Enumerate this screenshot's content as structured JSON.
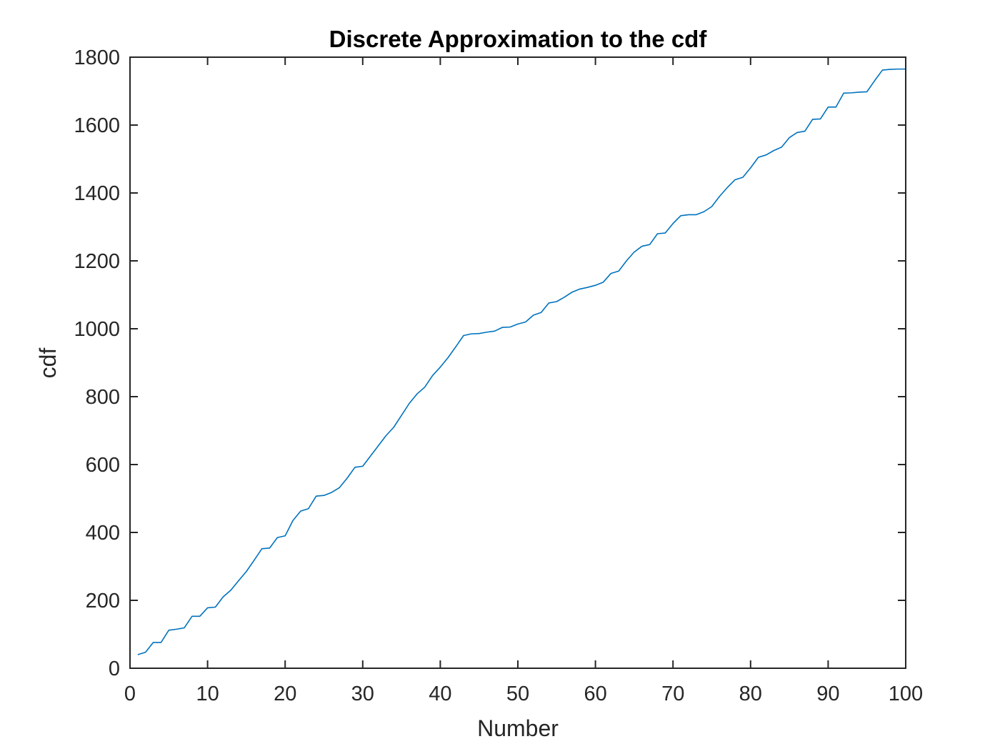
{
  "chart_data": {
    "type": "line",
    "title": "Discrete Approximation to the cdf",
    "xlabel": "Number",
    "ylabel": "cdf",
    "xlim": [
      0,
      100
    ],
    "ylim": [
      0,
      1800
    ],
    "xticks": [
      0,
      10,
      20,
      30,
      40,
      50,
      60,
      70,
      80,
      90,
      100
    ],
    "yticks": [
      0,
      200,
      400,
      600,
      800,
      1000,
      1200,
      1400,
      1600,
      1800
    ],
    "xtick_labels": [
      "0",
      "10",
      "20",
      "30",
      "40",
      "50",
      "60",
      "70",
      "80",
      "90",
      "100"
    ],
    "ytick_labels": [
      "0",
      "200",
      "400",
      "600",
      "800",
      "1000",
      "1200",
      "1400",
      "1600",
      "1800"
    ],
    "grid": false,
    "series": [
      {
        "color": "#0072BD",
        "x": [
          1,
          2,
          3,
          4,
          5,
          6,
          7,
          8,
          9,
          10,
          11,
          12,
          13,
          14,
          15,
          16,
          17,
          18,
          19,
          20,
          21,
          22,
          23,
          24,
          25,
          26,
          27,
          28,
          29,
          30,
          31,
          32,
          33,
          34,
          35,
          36,
          37,
          38,
          39,
          40,
          41,
          42,
          43,
          44,
          45,
          46,
          47,
          48,
          49,
          50,
          51,
          52,
          53,
          54,
          55,
          56,
          57,
          58,
          59,
          60,
          61,
          62,
          63,
          64,
          65,
          66,
          67,
          68,
          69,
          70,
          71,
          72,
          73,
          74,
          75,
          76,
          77,
          78,
          79,
          80,
          81,
          82,
          83,
          84,
          85,
          86,
          87,
          88,
          89,
          90,
          91,
          92,
          93,
          94,
          95,
          96,
          97,
          98,
          99,
          100
        ],
        "y": [
          40,
          47,
          76,
          76,
          112,
          115,
          119,
          153,
          153,
          178,
          180,
          210,
          230,
          258,
          285,
          318,
          352,
          354,
          385,
          390,
          435,
          463,
          470,
          507,
          509,
          518,
          532,
          560,
          592,
          595,
          625,
          655,
          685,
          710,
          745,
          780,
          808,
          828,
          862,
          887,
          915,
          947,
          980,
          985,
          986,
          990,
          993,
          1004,
          1005,
          1014,
          1020,
          1040,
          1048,
          1076,
          1080,
          1093,
          1108,
          1117,
          1122,
          1128,
          1137,
          1163,
          1170,
          1200,
          1226,
          1243,
          1248,
          1280,
          1282,
          1310,
          1333,
          1336,
          1336,
          1345,
          1360,
          1390,
          1416,
          1439,
          1446,
          1474,
          1505,
          1512,
          1525,
          1535,
          1563,
          1578,
          1582,
          1617,
          1618,
          1653,
          1653,
          1694,
          1695,
          1697,
          1698,
          1731,
          1762,
          1764,
          1765,
          1765
        ]
      }
    ]
  }
}
